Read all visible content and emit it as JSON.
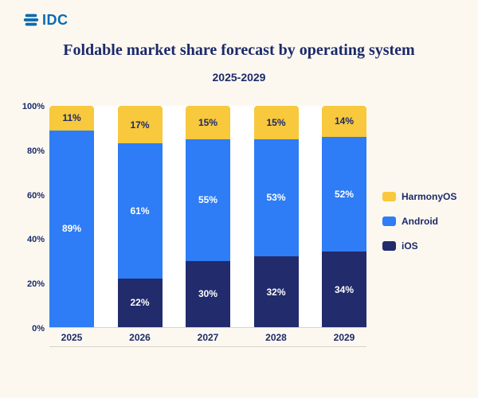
{
  "logo": {
    "text": "IDC"
  },
  "chart_data": {
    "type": "bar",
    "stacked": true,
    "title": "Foldable market share forecast by operating system",
    "subtitle": "2025-2029",
    "categories": [
      "2025",
      "2026",
      "2027",
      "2028",
      "2029"
    ],
    "series": [
      {
        "name": "iOS",
        "color": "#222b6b",
        "label_color": "#ffffff",
        "values": [
          0,
          22,
          30,
          32,
          34
        ]
      },
      {
        "name": "Android",
        "color": "#2e7cf6",
        "label_color": "#ffffff",
        "values": [
          89,
          61,
          55,
          53,
          52
        ]
      },
      {
        "name": "HarmonyOS",
        "color": "#f8c83d",
        "label_color": "#1c2a6a",
        "values": [
          11,
          17,
          15,
          15,
          14
        ]
      }
    ],
    "y_ticks": [
      0,
      20,
      40,
      60,
      80,
      100
    ],
    "y_tick_suffix": "%",
    "ylim": [
      0,
      100
    ],
    "data_label_suffix": "%",
    "legend": [
      "HarmonyOS",
      "Android",
      "iOS"
    ],
    "legend_position": "right",
    "grid": false
  },
  "colors": {
    "background": "#fcf8f0",
    "plot_background": "#ffffff",
    "title": "#1c2a6a",
    "axis_text": "#1c2a6a",
    "logo": "#0b6ab0",
    "axis_line": "#d8d3c8"
  }
}
